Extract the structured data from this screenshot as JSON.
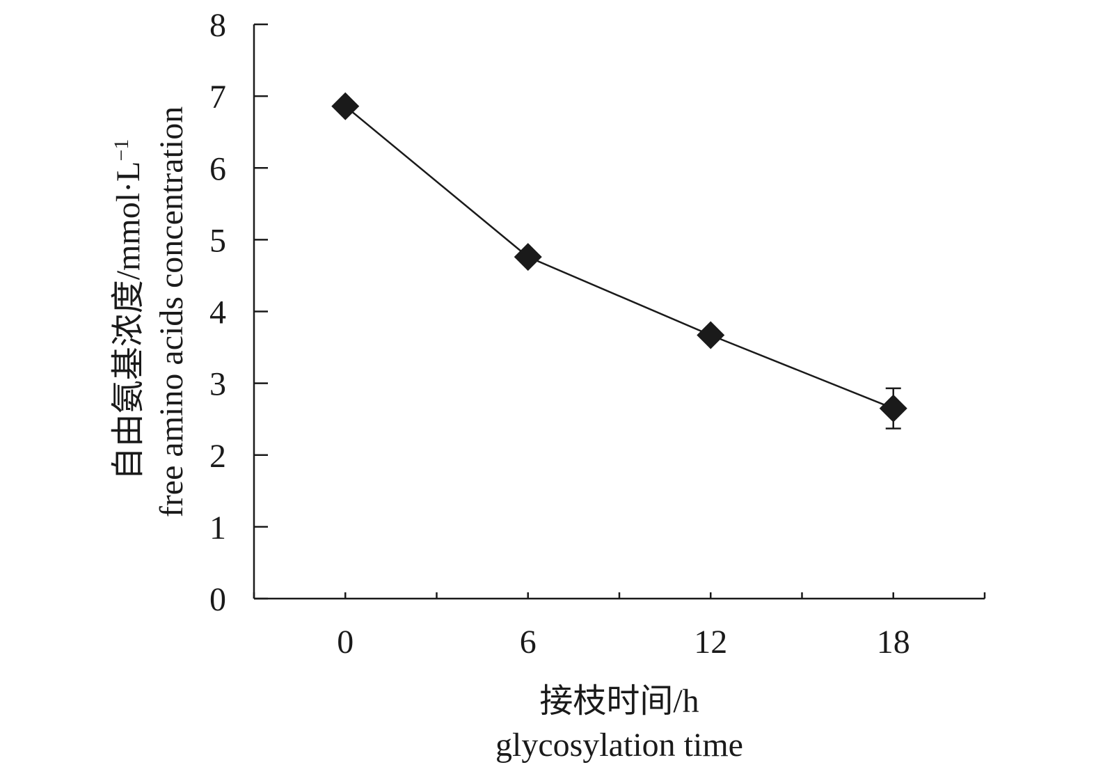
{
  "chart_data": {
    "type": "line",
    "x": [
      0,
      6,
      12,
      18
    ],
    "x_tick_labels": [
      "0",
      "6",
      "12",
      "18"
    ],
    "xlim": [
      -3,
      21
    ],
    "ylim": [
      0,
      8
    ],
    "y_ticks": [
      0,
      1,
      2,
      3,
      4,
      5,
      6,
      7,
      8
    ],
    "y_tick_labels": [
      "0",
      "1",
      "2",
      "3",
      "4",
      "5",
      "6",
      "7",
      "8"
    ],
    "xlabel": [
      "接枝时间/h",
      "glycosylation time"
    ],
    "ylabel": {
      "line1": "自由氨基浓度/mmol·L",
      "line1_sup": "−1",
      "line2": "free amino acids concentration"
    },
    "series": [
      {
        "values": [
          6.86,
          4.76,
          3.67,
          2.65
        ],
        "errors": [
          0.05,
          0.05,
          0.05,
          0.28
        ],
        "marker": "diamond",
        "color": "#1a1a1a"
      }
    ],
    "grid": false,
    "legend": "none"
  }
}
